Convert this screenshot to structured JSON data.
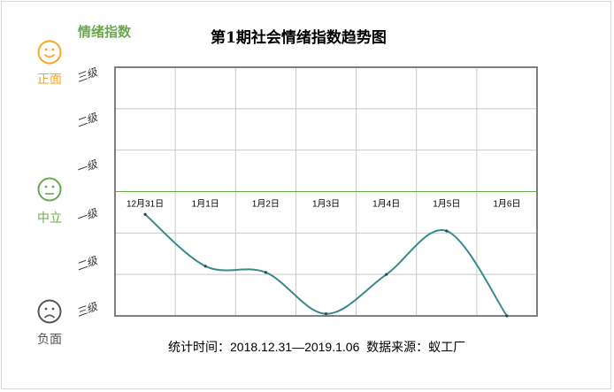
{
  "index_name": "情绪指数",
  "faces": [
    {
      "label": "正面",
      "icon": "smile-icon",
      "color": "#f5a623"
    },
    {
      "label": "中立",
      "icon": "neutral-face-icon",
      "color": "#6aa84f"
    },
    {
      "label": "负面",
      "icon": "frown-icon",
      "color": "#555555"
    }
  ],
  "levels": [
    "三级",
    "二级",
    "一级",
    "一级",
    "二级",
    "三级"
  ],
  "footer": {
    "period_label": "统计时间：",
    "period_value": "2018.12.31—2019.1.06",
    "source_label": "数据来源：",
    "source_value": "蚁工厂"
  },
  "chart_data": {
    "type": "line",
    "title": "第1期社会情绪指数趋势图",
    "categories": [
      "12月31日",
      "1月1日",
      "1月2日",
      "1月3日",
      "1月4日",
      "1月5日",
      "1月6日"
    ],
    "series": [
      {
        "values": [
          -0.55,
          -1.8,
          -1.95,
          -2.95,
          -2.0,
          -0.95,
          -3.0
        ]
      }
    ],
    "ylim": [
      -3,
      3
    ],
    "grid": true,
    "line_color": "#3a8a8c",
    "neutral_line_color": "#6aa84f"
  }
}
